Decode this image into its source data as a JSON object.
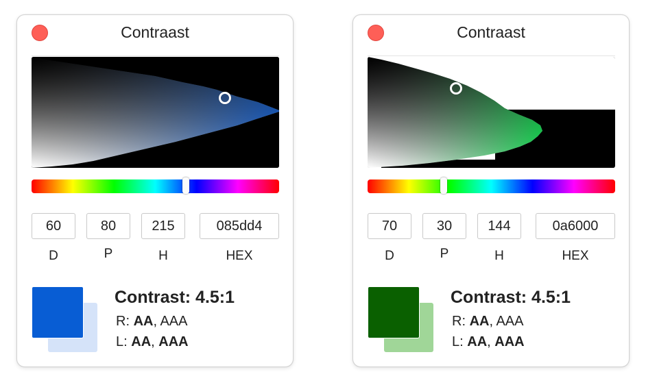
{
  "windows": [
    {
      "title": "Contraast",
      "picker": {
        "hue": 215,
        "colors": {
          "left_top": "#000000",
          "left_bottom": "#ffffff",
          "right_top": "#0a3d8a",
          "right_bottom": "#2b7dff",
          "accent": "#085dd4"
        }
      },
      "hue_position": 215,
      "fields": [
        {
          "value": "60",
          "label": "D"
        },
        {
          "value": "80",
          "label": "P"
        },
        {
          "value": "215",
          "label": "H"
        },
        {
          "value": "085dd4",
          "label": "HEX"
        }
      ],
      "swatch": {
        "foreground": "#085dd4",
        "background": "#d5e3f9"
      },
      "contrast": "Contrast: 4.5:1",
      "regular": {
        "prefix": "R:",
        "pass": "AA",
        "sep": ",",
        "fail": "AAA"
      },
      "large": {
        "prefix": "L:",
        "pass": "AA",
        "sep": ",",
        "pass2": "AAA"
      }
    },
    {
      "title": "Contraast",
      "picker": {
        "hue": 144,
        "colors": {
          "left_top": "#0a1a0e",
          "left_bottom": "#ffffff",
          "right_top": "#0a6000",
          "right_bottom": "#1de85a",
          "accent": "#0a6000"
        }
      },
      "hue_position": 144,
      "fields": [
        {
          "value": "70",
          "label": "D"
        },
        {
          "value": "30",
          "label": "P"
        },
        {
          "value": "144",
          "label": "H"
        },
        {
          "value": "0a6000",
          "label": "HEX"
        }
      ],
      "swatch": {
        "foreground": "#0a6000",
        "background": "#a0d698"
      },
      "contrast": "Contrast: 4.5:1",
      "regular": {
        "prefix": "R:",
        "pass": "AA",
        "sep": ",",
        "fail": "AAA"
      },
      "large": {
        "prefix": "L:",
        "pass": "AA",
        "sep": ",",
        "pass2": "AAA"
      }
    }
  ]
}
